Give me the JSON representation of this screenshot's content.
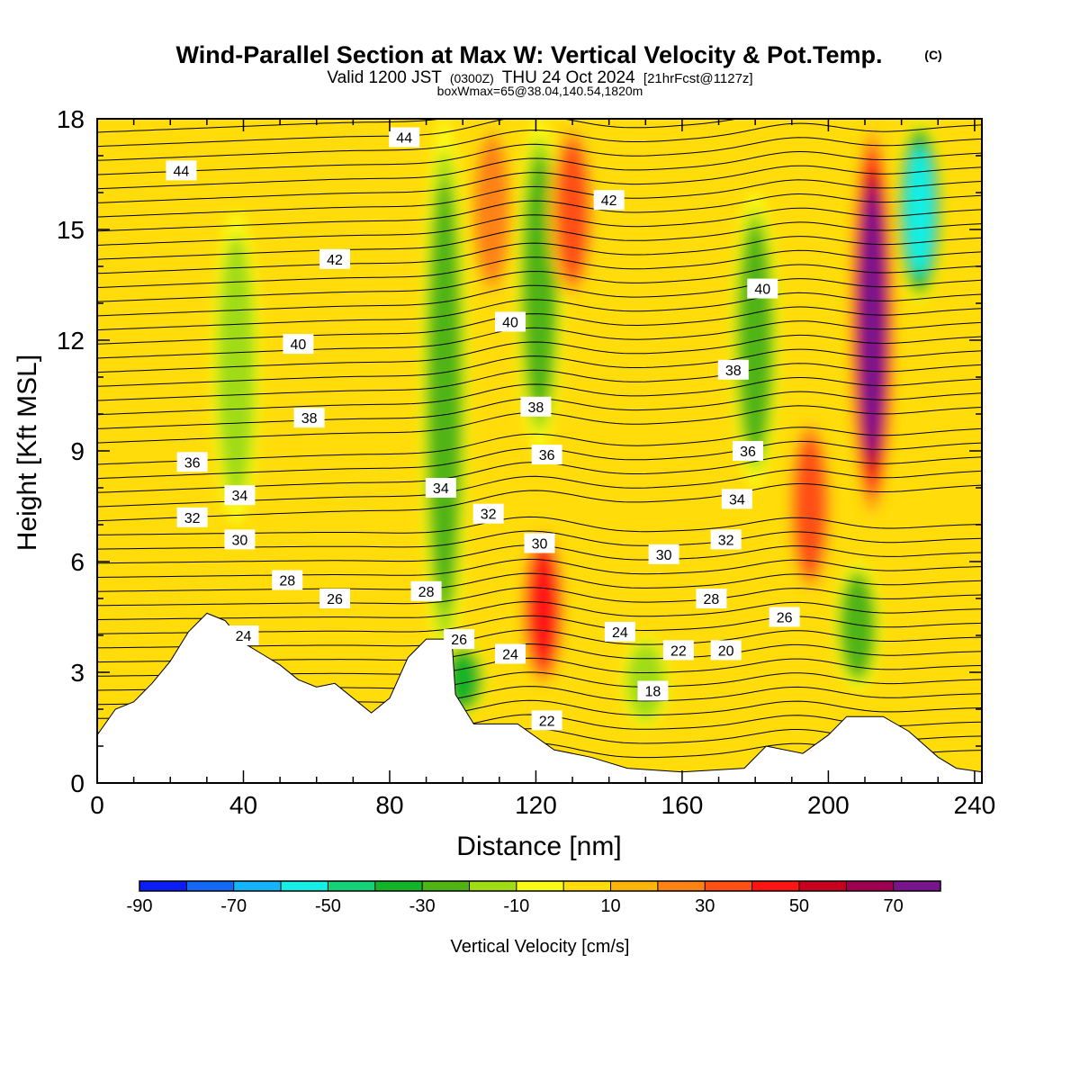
{
  "title": "Wind-Parallel Section at Max W: Vertical Velocity & Pot.Temp.",
  "copyright": "(C)",
  "subtitle_parts": [
    "Valid 1200 JST",
    "(0300Z)",
    "THU 24 Oct 2024",
    "[21hrFcst@1127z]"
  ],
  "info_line": "boxWmax=65@38.04,140.54,1820m",
  "chart_data": {
    "type": "heatmap",
    "xlabel": "Distance [nm]",
    "ylabel": "Height [Kft MSL]",
    "xlim": [
      0,
      242
    ],
    "ylim": [
      0,
      18
    ],
    "x_ticks": [
      0,
      40,
      80,
      120,
      160,
      200,
      240
    ],
    "y_ticks": [
      0,
      3,
      6,
      9,
      12,
      15,
      18
    ],
    "colorbar": {
      "label": "Vertical Velocity [cm/s]",
      "levels": [
        -90,
        -80,
        -70,
        -60,
        -50,
        -40,
        -30,
        -20,
        -10,
        0,
        10,
        20,
        30,
        40,
        50,
        60,
        70,
        80
      ],
      "tick_labels": [
        -90,
        -70,
        -50,
        -30,
        -10,
        10,
        30,
        50,
        70
      ],
      "colors": [
        "#0a1ef5",
        "#1468f8",
        "#14b4fa",
        "#14f0e6",
        "#14d278",
        "#14b428",
        "#50b414",
        "#a0dc14",
        "#fafa14",
        "#ffdc0a",
        "#ffb40a",
        "#ff8214",
        "#ff5014",
        "#ff1414",
        "#c8001e",
        "#a00050",
        "#78148c"
      ]
    },
    "vertical_velocity_features": [
      {
        "x": 38,
        "y_range": [
          7,
          15.5
        ],
        "value": -15
      },
      {
        "x": 95,
        "y_range": [
          3,
          18
        ],
        "value": -25
      },
      {
        "x": 100,
        "y_range": [
          1.8,
          3.8
        ],
        "value": -40
      },
      {
        "x": 108,
        "y_range": [
          13,
          18
        ],
        "value": 25
      },
      {
        "x": 121,
        "y_range": [
          9,
          18
        ],
        "value": -30
      },
      {
        "x": 122,
        "y_range": [
          2.5,
          7
        ],
        "value": 50
      },
      {
        "x": 130,
        "y_range": [
          13,
          18
        ],
        "value": 40
      },
      {
        "x": 150,
        "y_range": [
          1.5,
          4
        ],
        "value": -15
      },
      {
        "x": 180,
        "y_range": [
          8,
          16
        ],
        "value": -30
      },
      {
        "x": 195,
        "y_range": [
          5,
          10
        ],
        "value": 40
      },
      {
        "x": 208,
        "y_range": [
          2.5,
          6
        ],
        "value": -30
      },
      {
        "x": 212,
        "y_range": [
          7,
          18
        ],
        "value": 75
      },
      {
        "x": 225,
        "y_range": [
          13,
          18
        ],
        "value": -55
      }
    ],
    "terrain": [
      [
        0,
        1.3
      ],
      [
        5,
        2.0
      ],
      [
        10,
        2.2
      ],
      [
        15,
        2.7
      ],
      [
        20,
        3.3
      ],
      [
        25,
        4.1
      ],
      [
        30,
        4.6
      ],
      [
        35,
        4.4
      ],
      [
        40,
        3.8
      ],
      [
        45,
        3.5
      ],
      [
        50,
        3.2
      ],
      [
        55,
        2.8
      ],
      [
        60,
        2.6
      ],
      [
        65,
        2.7
      ],
      [
        70,
        2.3
      ],
      [
        75,
        1.9
      ],
      [
        80,
        2.3
      ],
      [
        85,
        3.4
      ],
      [
        90,
        3.9
      ],
      [
        97,
        3.9
      ],
      [
        98,
        2.4
      ],
      [
        103,
        1.6
      ],
      [
        115,
        1.6
      ],
      [
        125,
        0.9
      ],
      [
        135,
        0.7
      ],
      [
        145,
        0.4
      ],
      [
        160,
        0.3
      ],
      [
        177,
        0.4
      ],
      [
        183,
        1.0
      ],
      [
        193,
        0.8
      ],
      [
        200,
        1.3
      ],
      [
        205,
        1.8
      ],
      [
        215,
        1.8
      ],
      [
        222,
        1.4
      ],
      [
        230,
        0.7
      ],
      [
        235,
        0.4
      ],
      [
        242,
        0.3
      ]
    ],
    "pot_temp_label_positions": [
      {
        "label": "44",
        "x": 23,
        "y": 16.6
      },
      {
        "label": "44",
        "x": 84,
        "y": 17.5
      },
      {
        "label": "42",
        "x": 140,
        "y": 15.8
      },
      {
        "label": "42",
        "x": 65,
        "y": 14.2
      },
      {
        "label": "40",
        "x": 113,
        "y": 12.5
      },
      {
        "label": "40",
        "x": 182,
        "y": 13.4
      },
      {
        "label": "40",
        "x": 55,
        "y": 11.9
      },
      {
        "label": "38",
        "x": 174,
        "y": 11.2
      },
      {
        "label": "38",
        "x": 58,
        "y": 9.9
      },
      {
        "label": "38",
        "x": 120,
        "y": 10.2
      },
      {
        "label": "36",
        "x": 26,
        "y": 8.7
      },
      {
        "label": "36",
        "x": 123,
        "y": 8.9
      },
      {
        "label": "36",
        "x": 178,
        "y": 9.0
      },
      {
        "label": "34",
        "x": 39,
        "y": 7.8
      },
      {
        "label": "34",
        "x": 94,
        "y": 8.0
      },
      {
        "label": "34",
        "x": 175,
        "y": 7.7
      },
      {
        "label": "32",
        "x": 26,
        "y": 7.2
      },
      {
        "label": "32",
        "x": 107,
        "y": 7.3
      },
      {
        "label": "32",
        "x": 172,
        "y": 6.6
      },
      {
        "label": "30",
        "x": 39,
        "y": 6.6
      },
      {
        "label": "30",
        "x": 121,
        "y": 6.5
      },
      {
        "label": "30",
        "x": 155,
        "y": 6.2
      },
      {
        "label": "28",
        "x": 52,
        "y": 5.5
      },
      {
        "label": "28",
        "x": 90,
        "y": 5.2
      },
      {
        "label": "28",
        "x": 168,
        "y": 5.0
      },
      {
        "label": "26",
        "x": 65,
        "y": 5.0
      },
      {
        "label": "26",
        "x": 99,
        "y": 3.9
      },
      {
        "label": "26",
        "x": 188,
        "y": 4.5
      },
      {
        "label": "24",
        "x": 40,
        "y": 4.0
      },
      {
        "label": "24",
        "x": 113,
        "y": 3.5
      },
      {
        "label": "24",
        "x": 143,
        "y": 4.1
      },
      {
        "label": "22",
        "x": 159,
        "y": 3.6
      },
      {
        "label": "22",
        "x": 123,
        "y": 1.7
      },
      {
        "label": "20",
        "x": 172,
        "y": 3.6
      },
      {
        "label": "18",
        "x": 152,
        "y": 2.5
      }
    ]
  }
}
